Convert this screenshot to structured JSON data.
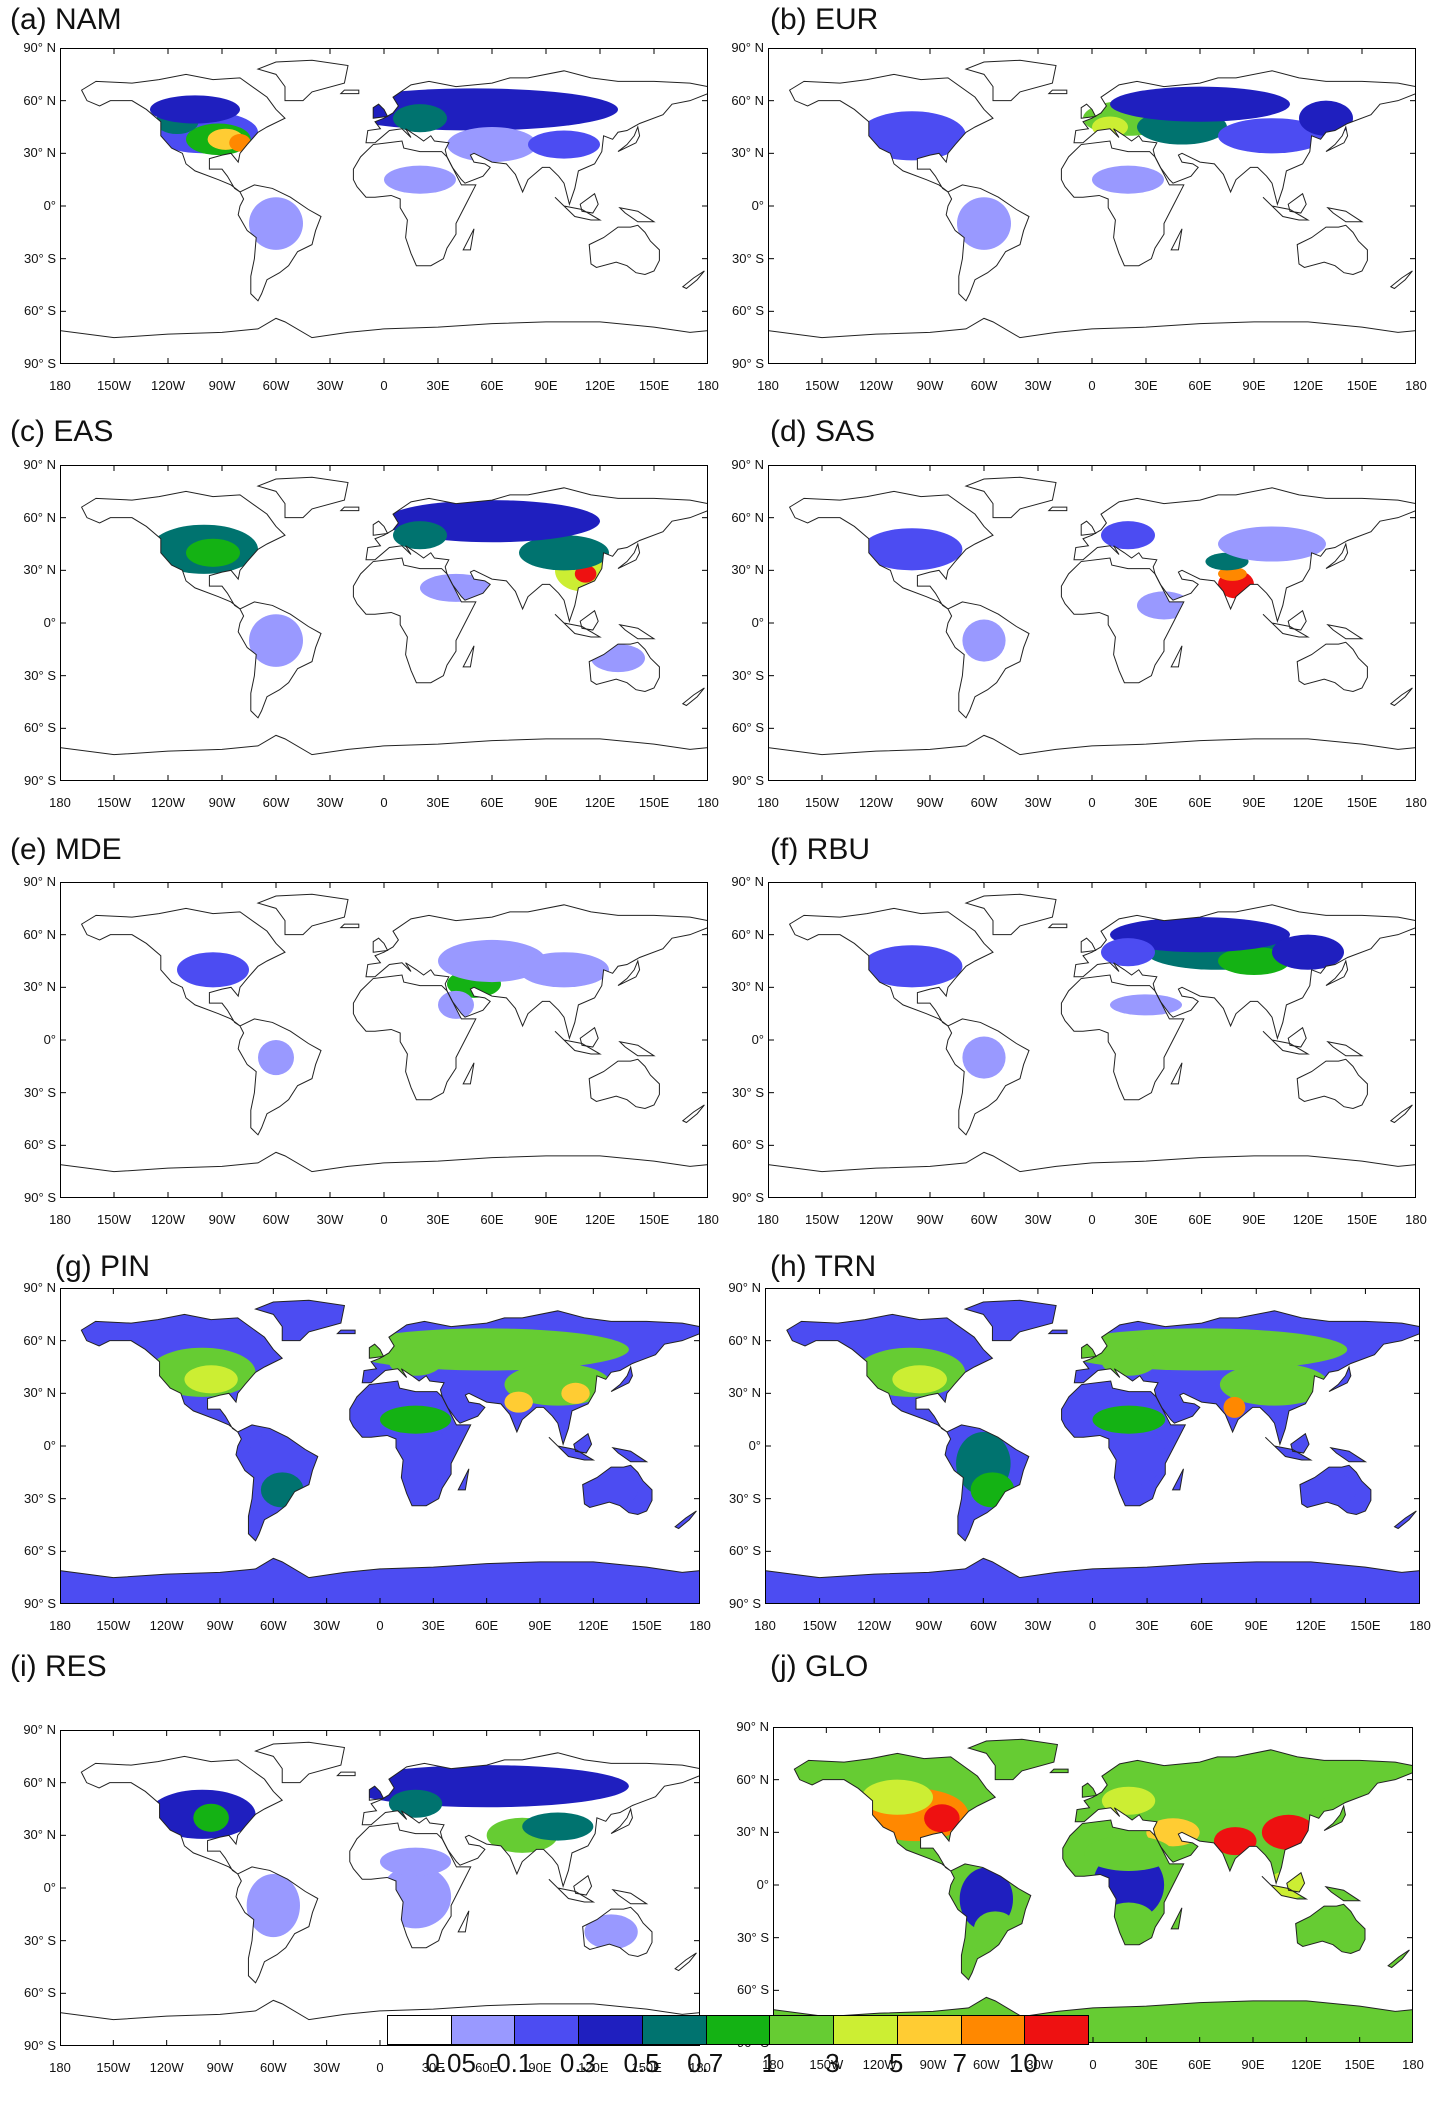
{
  "panels": [
    {
      "title": "(a) NAM",
      "key": "NAM"
    },
    {
      "title": "(b) EUR",
      "key": "EUR"
    },
    {
      "title": "(c) EAS",
      "key": "EAS"
    },
    {
      "title": "(d) SAS",
      "key": "SAS"
    },
    {
      "title": "(e) MDE",
      "key": "MDE"
    },
    {
      "title": "(f) RBU",
      "key": "RBU"
    },
    {
      "title": "(g) PIN",
      "key": "PIN"
    },
    {
      "title": "(h) TRN",
      "key": "TRN"
    },
    {
      "title": "(i) RES",
      "key": "RES"
    },
    {
      "title": "(j) GLO",
      "key": "GLO"
    }
  ],
  "lat_labels": [
    "90° N",
    "60° N",
    "30° N",
    "0°",
    "30° S",
    "60° S",
    "90° S"
  ],
  "lon_labels": [
    "180",
    "150W",
    "120W",
    "90W",
    "60W",
    "30W",
    "0",
    "30E",
    "60E",
    "90E",
    "120E",
    "150E",
    "180"
  ],
  "colorbar": {
    "colors": [
      "#ffffff",
      "#9999ff",
      "#4c4cf2",
      "#1f1fbf",
      "#00736f",
      "#14b214",
      "#66cc33",
      "#ccee33",
      "#ffcc33",
      "#ff8800",
      "#ee1111"
    ],
    "labels": [
      "0.05",
      "0.1",
      "0.3",
      "0.5",
      "0.7",
      "1",
      "3",
      "5",
      "7",
      "10"
    ]
  },
  "map_colors": {
    "land_outline": "#222222",
    "ocean": "#ffffff"
  }
}
